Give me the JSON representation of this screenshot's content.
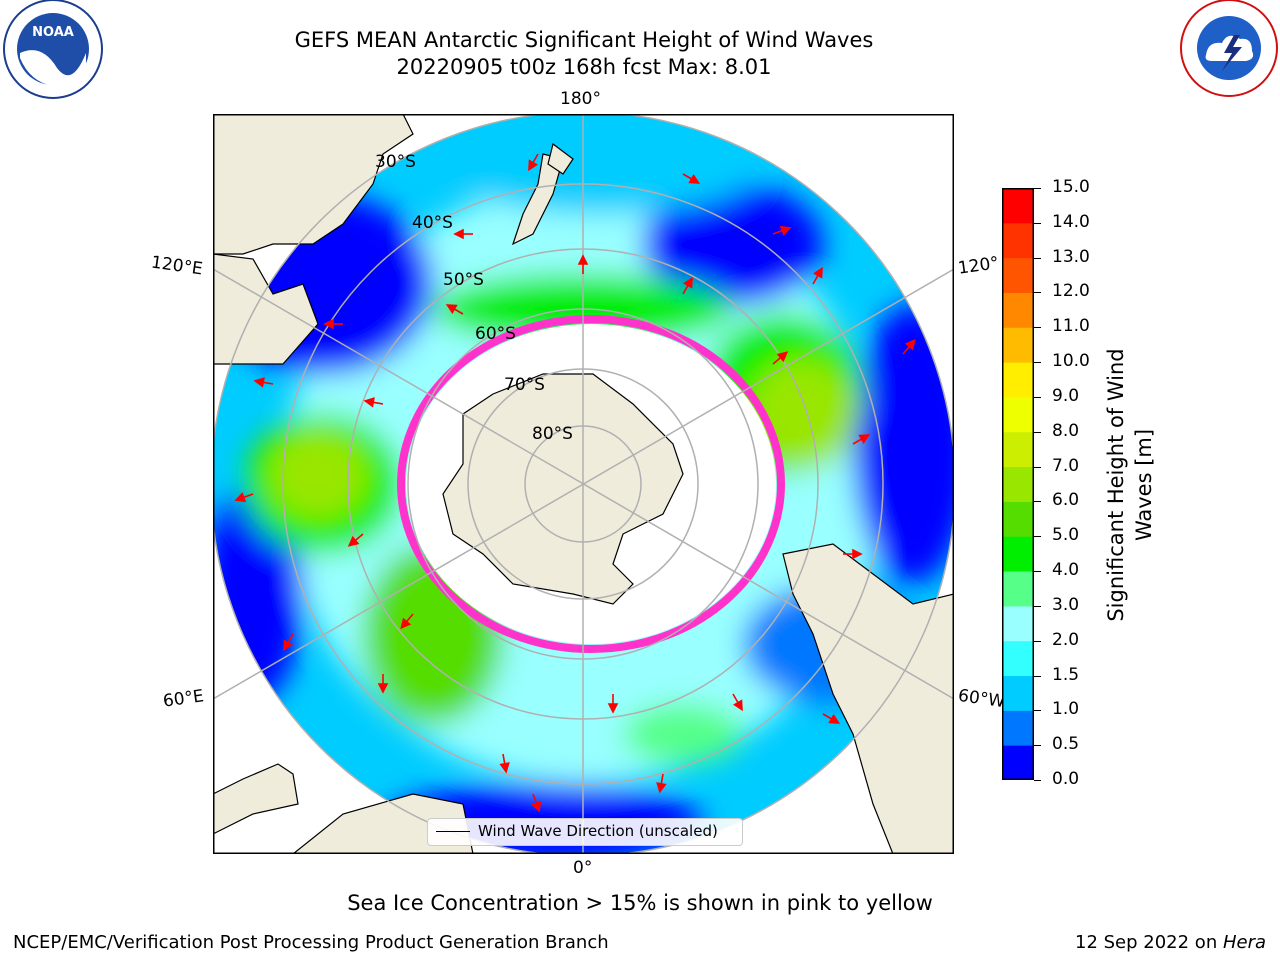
{
  "title": {
    "line1": "GEFS MEAN Antarctic Significant Height of Wind Waves",
    "line2": "20220905 t00z 168h fcst   Max: 8.01"
  },
  "map": {
    "projection": "south-polar-stereographic",
    "longitude_labels": {
      "top": "180°",
      "bottom": "0°",
      "left_upper": "120°E",
      "left_lower": "60°E",
      "right_upper": "120°",
      "right_lower": "60°W"
    },
    "latitude_labels": [
      "30°S",
      "40°S",
      "50°S",
      "60°S",
      "70°S",
      "80°S"
    ],
    "colors": {
      "land": "#efecdc",
      "ice": "#ffffff",
      "coast": "#000000",
      "grid": "#b0b0b0",
      "arrow": "#ff0000",
      "sea_ice_edge": "#ff33cc"
    }
  },
  "legend": {
    "label": "Wind Wave Direction (unscaled)"
  },
  "colorbar": {
    "title_line1": "Significant Height of Wind",
    "title_line2": "Waves [m]",
    "ticks": [
      "0.0",
      "0.5",
      "1.0",
      "1.5",
      "2.0",
      "3.0",
      "4.0",
      "5.0",
      "6.0",
      "7.0",
      "8.0",
      "9.0",
      "10.0",
      "11.0",
      "12.0",
      "13.0",
      "14.0",
      "15.0"
    ],
    "colors": [
      "#0000ff",
      "#0077ff",
      "#00ccff",
      "#33ffff",
      "#99ffff",
      "#55ff88",
      "#00ee00",
      "#55dd00",
      "#99e600",
      "#ccee00",
      "#eeff00",
      "#ffee00",
      "#ffbb00",
      "#ff8800",
      "#ff5500",
      "#ff3300",
      "#ff0000"
    ]
  },
  "note": "Sea Ice Concentration > 15% is shown in pink to yellow",
  "footer": {
    "left": "NCEP/EMC/Verification Post Processing Product Generation Branch",
    "right_prefix": "12 Sep 2022 on ",
    "right_em": "Hera"
  },
  "logos": {
    "left": "NOAA",
    "right": "NATIONAL WEATHER SERVICE"
  }
}
